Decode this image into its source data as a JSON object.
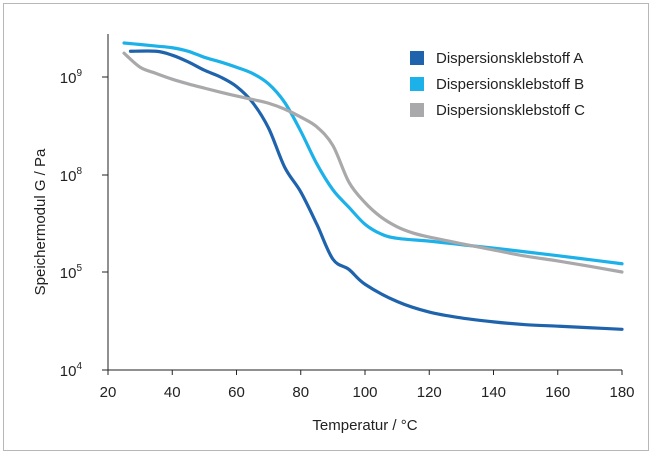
{
  "chart_data": {
    "type": "line",
    "xlabel": "Temperatur / °C",
    "ylabel": "Speichermodul G / Pa",
    "xlim": [
      20,
      180
    ],
    "x_ticks": [
      20,
      40,
      60,
      80,
      100,
      120,
      140,
      160,
      180
    ],
    "y_ticks": [
      {
        "value": 10000,
        "base": "10",
        "exp": "4"
      },
      {
        "value": 100000,
        "base": "10",
        "exp": "5"
      },
      {
        "value": 100000000,
        "base": "10",
        "exp": "8"
      },
      {
        "value": 1000000000,
        "base": "10",
        "exp": "9"
      }
    ],
    "yscale": "log",
    "legend_position": "top-right",
    "grid": false,
    "series": [
      {
        "name": "Dispersionsklebstoff A",
        "color": "#1f63ad",
        "points": [
          [
            27,
            2000000000
          ],
          [
            35,
            2000000000
          ],
          [
            40,
            1800000000
          ],
          [
            45,
            1500000000
          ],
          [
            50,
            1200000000
          ],
          [
            55,
            1000000000
          ],
          [
            60,
            800000000
          ],
          [
            65,
            550000000
          ],
          [
            70,
            300000000
          ],
          [
            75,
            120000000
          ],
          [
            80,
            30000000
          ],
          [
            85,
            3000000
          ],
          [
            90,
            250000
          ],
          [
            95,
            120000
          ],
          [
            100,
            75000
          ],
          [
            110,
            50000
          ],
          [
            120,
            39000
          ],
          [
            130,
            34000
          ],
          [
            140,
            31000
          ],
          [
            150,
            29000
          ],
          [
            160,
            28000
          ],
          [
            170,
            27000
          ],
          [
            180,
            26000
          ]
        ]
      },
      {
        "name": "Dispersionsklebstoff B",
        "color": "#1cb1e8",
        "points": [
          [
            25,
            2500000000
          ],
          [
            30,
            2400000000
          ],
          [
            35,
            2300000000
          ],
          [
            40,
            2200000000
          ],
          [
            45,
            2000000000
          ],
          [
            50,
            1700000000
          ],
          [
            55,
            1500000000
          ],
          [
            60,
            1300000000
          ],
          [
            65,
            1100000000
          ],
          [
            70,
            850000000
          ],
          [
            75,
            550000000
          ],
          [
            80,
            280000000
          ],
          [
            85,
            130000000
          ],
          [
            90,
            35000000
          ],
          [
            95,
            10000000
          ],
          [
            100,
            3000000
          ],
          [
            105,
            1500000
          ],
          [
            110,
            1100000
          ],
          [
            120,
            900000
          ],
          [
            130,
            700000
          ],
          [
            140,
            550000
          ],
          [
            150,
            420000
          ],
          [
            160,
            320000
          ],
          [
            170,
            240000
          ],
          [
            180,
            180000
          ]
        ]
      },
      {
        "name": "Dispersionsklebstoff C",
        "color": "#a9a9ab",
        "points": [
          [
            25,
            1900000000
          ],
          [
            30,
            1300000000
          ],
          [
            35,
            1100000000
          ],
          [
            40,
            950000000
          ],
          [
            45,
            850000000
          ],
          [
            50,
            770000000
          ],
          [
            55,
            700000000
          ],
          [
            60,
            640000000
          ],
          [
            65,
            590000000
          ],
          [
            70,
            540000000
          ],
          [
            75,
            470000000
          ],
          [
            80,
            390000000
          ],
          [
            85,
            310000000
          ],
          [
            90,
            200000000
          ],
          [
            95,
            60000000
          ],
          [
            100,
            14000000
          ],
          [
            105,
            5000000
          ],
          [
            110,
            2500000
          ],
          [
            115,
            1600000
          ],
          [
            120,
            1200000
          ],
          [
            130,
            750000
          ],
          [
            140,
            480000
          ],
          [
            150,
            310000
          ],
          [
            160,
            220000
          ],
          [
            170,
            150000
          ],
          [
            180,
            100000
          ]
        ]
      }
    ]
  }
}
